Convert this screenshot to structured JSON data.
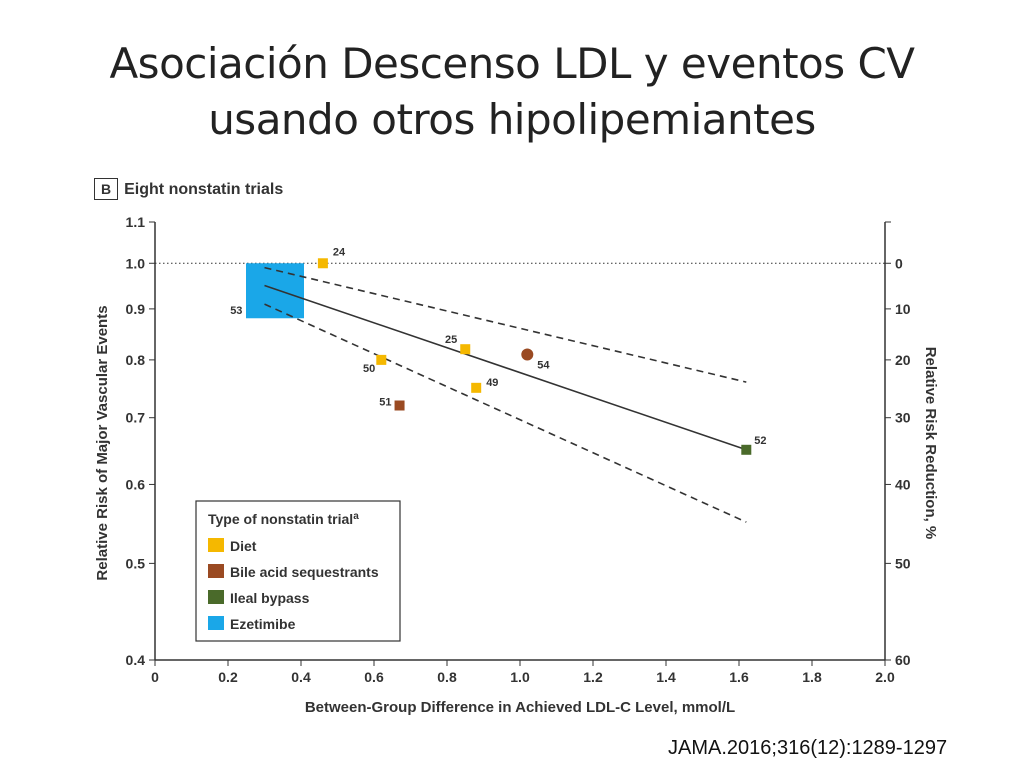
{
  "slide": {
    "title_line1": "Asociación Descenso LDL y eventos CV",
    "title_line2": "usando otros hipolipemiantes",
    "panel_letter": "B",
    "panel_text": "Eight nonstatin trials",
    "citation": "JAMA.2016;316(12):1289-1297"
  },
  "chart_data": {
    "type": "scatter",
    "xlabel": "Between-Group Difference in Achieved LDL-C Level, mmol/L",
    "ylabel": "Relative Risk of Major Vascular Events",
    "y2label": "Relative Risk Reduction, %",
    "xlim": [
      0,
      2.0
    ],
    "ylim": [
      0.4,
      1.1
    ],
    "y_scale": "log",
    "x_ticks": [
      "0",
      "0.2",
      "0.4",
      "0.6",
      "0.8",
      "1.0",
      "1.2",
      "1.4",
      "1.6",
      "1.8",
      "2.0"
    ],
    "x_tick_values": [
      0,
      0.2,
      0.4,
      0.6,
      0.8,
      1.0,
      1.2,
      1.4,
      1.6,
      1.8,
      2.0
    ],
    "y_ticks": [
      "0.4",
      "0.5",
      "0.6",
      "0.7",
      "0.8",
      "0.9",
      "1.0",
      "1.1"
    ],
    "y_tick_values": [
      0.4,
      0.5,
      0.6,
      0.7,
      0.8,
      0.9,
      1.0,
      1.1
    ],
    "y2_ticks": [
      "0",
      "10",
      "20",
      "30",
      "40",
      "50",
      "60"
    ],
    "y2_tick_values": [
      0,
      10,
      20,
      30,
      40,
      50,
      60
    ],
    "reference_line": 1.0,
    "legend": {
      "title": "Type of nonstatin trial",
      "title_superscript": "a",
      "placement": "bottom-left",
      "entries": [
        {
          "name": "Diet",
          "color": "#f5b800"
        },
        {
          "name": "Bile acid sequestrants",
          "color": "#9a4a22"
        },
        {
          "name": "Ileal bypass",
          "color": "#4a6a2a"
        },
        {
          "name": "Ezetimibe",
          "color": "#1aa7e8"
        }
      ]
    },
    "points": [
      {
        "label": "24",
        "x": 0.46,
        "y": 1.0,
        "type": "Diet",
        "marker": "square"
      },
      {
        "label": "25",
        "x": 0.85,
        "y": 0.82,
        "type": "Diet",
        "marker": "square"
      },
      {
        "label": "50",
        "x": 0.62,
        "y": 0.8,
        "type": "Diet",
        "marker": "square"
      },
      {
        "label": "49",
        "x": 0.88,
        "y": 0.75,
        "type": "Diet",
        "marker": "square"
      },
      {
        "label": "51",
        "x": 0.67,
        "y": 0.72,
        "type": "Bile acid sequestrants",
        "marker": "square"
      },
      {
        "label": "54",
        "x": 1.02,
        "y": 0.81,
        "type": "Bile acid sequestrants",
        "marker": "circle"
      },
      {
        "label": "52",
        "x": 1.62,
        "y": 0.65,
        "type": "Ileal bypass",
        "marker": "square"
      },
      {
        "label": "53",
        "x": 0.33,
        "y": 0.94,
        "type": "Ezetimibe",
        "marker": "large-square"
      }
    ],
    "regression": {
      "x": [
        0.3,
        1.62
      ],
      "y": [
        0.95,
        0.65
      ]
    },
    "ci_upper": {
      "x": [
        0.3,
        1.62
      ],
      "y": [
        0.99,
        0.76
      ]
    },
    "ci_lower": {
      "x": [
        0.3,
        1.62
      ],
      "y": [
        0.91,
        0.55
      ]
    },
    "grid": false
  }
}
